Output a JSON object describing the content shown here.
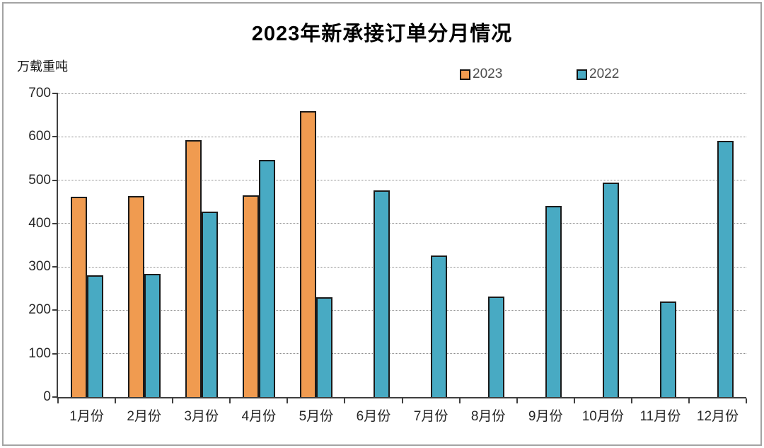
{
  "chart_data": {
    "type": "bar",
    "title": "2023年新承接订单分月情况",
    "unit_label": "万载重吨",
    "categories": [
      "1月份",
      "2月份",
      "3月份",
      "4月份",
      "5月份",
      "6月份",
      "7月份",
      "8月份",
      "9月份",
      "10月份",
      "11月份",
      "12月份"
    ],
    "series": [
      {
        "name": "2023",
        "color": "#F09B50",
        "values": [
          461,
          463,
          593,
          465,
          660,
          null,
          null,
          null,
          null,
          null,
          null,
          null
        ]
      },
      {
        "name": "2022",
        "color": "#48AAC3",
        "values": [
          281,
          284,
          428,
          547,
          230,
          476,
          327,
          232,
          440,
          494,
          220,
          591
        ]
      }
    ],
    "ylim": [
      0,
      700
    ],
    "yticks": [
      0,
      100,
      200,
      300,
      400,
      500,
      600,
      700
    ],
    "xlabel": "",
    "ylabel": "万载重吨",
    "grid": "horizontal-dotted",
    "legend_position": "top",
    "colors": {
      "bar_border": "#1a1a1a",
      "gridline": "#8c8c8c",
      "axis": "#3f3f3f",
      "frame_border": "#a3a3a3",
      "title_text": "#000000",
      "tick_text": "#262626",
      "legend_text": "#4d4d4d",
      "background": "#ffffff"
    }
  }
}
